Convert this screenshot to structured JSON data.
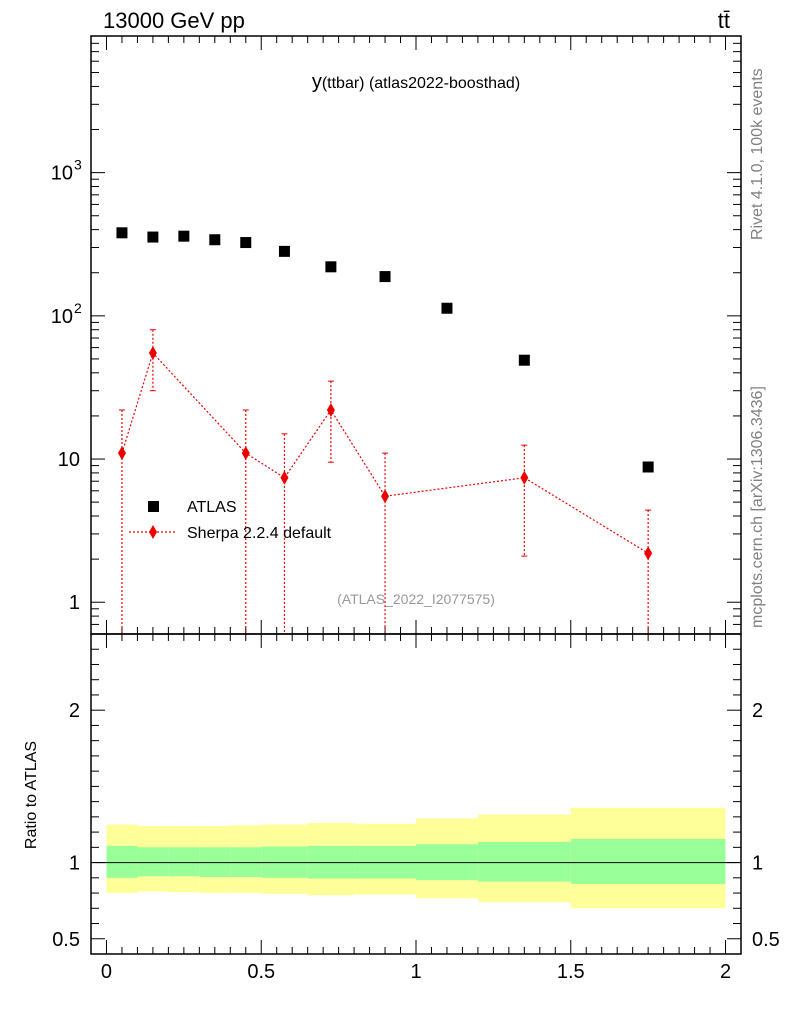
{
  "header": {
    "left": "13000 GeV pp",
    "right": "tt̄",
    "side_top": "Rivet 4.1.0,  100k events",
    "side_bottom": "mcplots.cern.ch [arXiv:1306.3436]",
    "watermark": "(ATLAS_2022_I2077575)"
  },
  "colors": {
    "data": "#000000",
    "mc": "#ee0000",
    "band_inner": "#99ff99",
    "band_outer": "#ffff99"
  },
  "chart_data": [
    {
      "type": "scatter",
      "title_main": "y",
      "title_sub": "(ttbar) (atlas2022-boosthad)",
      "yscale": "log",
      "xlim": [
        -0.05,
        2.05
      ],
      "ylim": [
        0.6,
        9000
      ],
      "ytick_labels": [
        "1",
        "10",
        "10",
        "10"
      ],
      "ytick_exponents": [
        "",
        "",
        "2",
        "3"
      ],
      "legend": [
        "ATLAS",
        "Sherpa 2.2.4 default"
      ],
      "bins": [
        [
          0,
          0.1
        ],
        [
          0.1,
          0.2
        ],
        [
          0.2,
          0.3
        ],
        [
          0.3,
          0.4
        ],
        [
          0.4,
          0.5
        ],
        [
          0.5,
          0.65
        ],
        [
          0.65,
          0.8
        ],
        [
          0.8,
          1.0
        ],
        [
          1.0,
          1.2
        ],
        [
          1.2,
          1.5
        ],
        [
          1.5,
          2.0
        ]
      ],
      "series": [
        {
          "name": "ATLAS",
          "x": [
            0.05,
            0.15,
            0.25,
            0.35,
            0.45,
            0.575,
            0.725,
            0.9,
            1.1,
            1.35,
            1.75
          ],
          "values": [
            380,
            355,
            360,
            340,
            325,
            282,
            220,
            188,
            113,
            49,
            8.8
          ]
        },
        {
          "name": "Sherpa 2.2.4 default",
          "x": [
            0.05,
            0.15,
            0.45,
            0.575,
            0.725,
            0.9,
            1.35,
            1.75
          ],
          "values": [
            11,
            55,
            11,
            7.4,
            22,
            5.5,
            7.4,
            2.2
          ],
          "err_up": [
            22,
            80,
            22,
            15,
            35,
            11,
            12.5,
            4.4
          ],
          "err_down": [
            0.5,
            30,
            0.5,
            0.5,
            9.5,
            0.5,
            2.1,
            0.5
          ]
        }
      ]
    },
    {
      "type": "area",
      "ylabel": "Ratio to ATLAS",
      "xlim": [
        -0.05,
        2.05
      ],
      "ylim": [
        0.4,
        2.5
      ],
      "xtick_labels": [
        "0",
        "0.5",
        "1",
        "1.5",
        "2"
      ],
      "ytick_labels": [
        "0.5",
        "1",
        "2"
      ],
      "bins": [
        [
          0,
          0.1
        ],
        [
          0.1,
          0.2
        ],
        [
          0.2,
          0.3
        ],
        [
          0.3,
          0.4
        ],
        [
          0.4,
          0.5
        ],
        [
          0.5,
          0.65
        ],
        [
          0.65,
          0.8
        ],
        [
          0.8,
          1.0
        ],
        [
          1.0,
          1.2
        ],
        [
          1.2,
          1.5
        ],
        [
          1.5,
          2.0
        ]
      ],
      "inner_band": [
        [
          0.9,
          1.11
        ],
        [
          0.91,
          1.1
        ],
        [
          0.91,
          1.1
        ],
        [
          0.905,
          1.1
        ],
        [
          0.905,
          1.1
        ],
        [
          0.9,
          1.105
        ],
        [
          0.895,
          1.11
        ],
        [
          0.895,
          1.11
        ],
        [
          0.885,
          1.12
        ],
        [
          0.875,
          1.135
        ],
        [
          0.86,
          1.155
        ]
      ],
      "outer_band": [
        [
          0.8,
          1.25
        ],
        [
          0.81,
          1.24
        ],
        [
          0.805,
          1.24
        ],
        [
          0.8,
          1.24
        ],
        [
          0.8,
          1.245
        ],
        [
          0.795,
          1.25
        ],
        [
          0.785,
          1.26
        ],
        [
          0.79,
          1.255
        ],
        [
          0.765,
          1.29
        ],
        [
          0.74,
          1.315
        ],
        [
          0.7,
          1.36
        ]
      ]
    }
  ]
}
